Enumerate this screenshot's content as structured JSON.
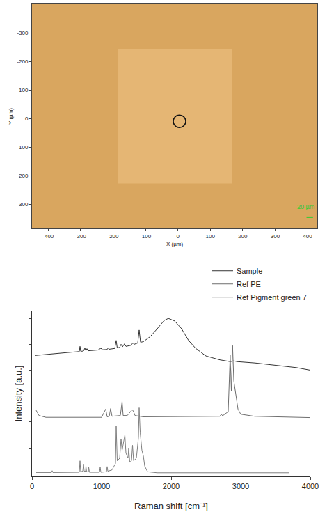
{
  "chart_data": [
    {
      "type": "scatter",
      "x_label": "X (µm)",
      "y_label": "Y (µm)",
      "x": [
        5
      ],
      "values": [
        10
      ],
      "marker": "circle-open",
      "color": "#111111",
      "xlim": [
        -450,
        430
      ],
      "ylim": [
        385,
        -400
      ],
      "xticks": [
        -400,
        -300,
        -200,
        -100,
        0,
        100,
        200,
        300,
        400
      ],
      "yticks": [
        -300,
        -200,
        -100,
        0,
        100,
        200,
        300
      ],
      "scale_bar_length": 20,
      "annotations": [
        {
          "text": "20 µm",
          "color": "#33cc33"
        }
      ],
      "grid": false
    },
    {
      "type": "line",
      "x_label": "Raman shift [cm⁻¹]",
      "y_label": "Intensity [a.u.]",
      "series": [
        {
          "name": "Sample",
          "color": "#333333",
          "x": [
            50,
            300,
            500,
            680,
            690,
            700,
            740,
            760,
            775,
            790,
            805,
            950,
            990,
            1010,
            1080,
            1095,
            1110,
            1190,
            1210,
            1225,
            1260,
            1280,
            1300,
            1330,
            1350,
            1420,
            1450,
            1470,
            1520,
            1540,
            1560,
            1600,
            1700,
            1800,
            1900,
            1960,
            2050,
            2150,
            2250,
            2350,
            2500,
            2700,
            2850,
            2900,
            2950,
            3200,
            3500,
            3800,
            4000
          ],
          "values": [
            4.57,
            4.62,
            4.68,
            4.72,
            4.92,
            4.73,
            4.74,
            4.85,
            4.75,
            4.83,
            4.75,
            4.78,
            4.85,
            4.79,
            4.8,
            4.86,
            4.81,
            4.84,
            5.15,
            4.86,
            4.88,
            5.0,
            4.9,
            5.02,
            4.92,
            4.96,
            5.05,
            5.0,
            5.05,
            5.55,
            5.08,
            5.1,
            5.3,
            5.6,
            5.92,
            6.0,
            5.9,
            5.6,
            5.15,
            4.85,
            4.55,
            4.4,
            4.33,
            4.36,
            4.33,
            4.28,
            4.2,
            4.1,
            4.0
          ]
        },
        {
          "name": "Ref PE",
          "color": "#6e6e6e",
          "x": [
            60,
            100,
            200,
            1000,
            1060,
            1080,
            1110,
            1130,
            1150,
            1270,
            1295,
            1310,
            1370,
            1420,
            1440,
            1460,
            1480,
            1600,
            2700,
            2720,
            2740,
            2820,
            2848,
            2865,
            2883,
            2900,
            2935,
            2960,
            3000,
            3200,
            4000
          ],
          "values": [
            2.45,
            2.25,
            2.18,
            2.18,
            2.5,
            2.2,
            2.22,
            2.52,
            2.22,
            2.25,
            2.8,
            2.25,
            2.25,
            2.4,
            2.48,
            2.4,
            2.25,
            2.2,
            2.22,
            2.3,
            2.24,
            2.4,
            4.6,
            3.2,
            4.95,
            3.6,
            3.0,
            2.5,
            2.3,
            2.22,
            2.17
          ]
        },
        {
          "name": "Ref Pigment green 7",
          "color": "#808080",
          "x": [
            60,
            280,
            290,
            300,
            680,
            690,
            700,
            730,
            740,
            750,
            770,
            775,
            785,
            810,
            815,
            825,
            970,
            980,
            990,
            1070,
            1080,
            1090,
            1150,
            1200,
            1210,
            1225,
            1260,
            1280,
            1295,
            1310,
            1335,
            1350,
            1380,
            1390,
            1405,
            1430,
            1445,
            1460,
            1500,
            1530,
            1540,
            1555,
            1580,
            1600,
            1620,
            1660,
            1800,
            3700
          ],
          "values": [
            0.05,
            0.05,
            0.12,
            0.05,
            0.06,
            0.5,
            0.08,
            0.1,
            0.38,
            0.1,
            0.1,
            0.3,
            0.08,
            0.08,
            0.25,
            0.06,
            0.06,
            0.25,
            0.06,
            0.08,
            0.28,
            0.1,
            0.15,
            0.4,
            1.85,
            0.5,
            0.6,
            1.35,
            0.9,
            1.1,
            1.5,
            0.8,
            0.6,
            1.0,
            0.45,
            0.5,
            1.1,
            0.5,
            0.6,
            1.4,
            2.55,
            1.6,
            0.9,
            0.7,
            0.3,
            0.08,
            0.04,
            0.04
          ]
        }
      ],
      "xlim": [
        0,
        4000
      ],
      "xticks": [
        0,
        1000,
        2000,
        3000,
        4000
      ],
      "ylim": [
        -0.1,
        6.3
      ],
      "yticks": [
        0,
        1,
        2,
        3,
        4,
        5,
        6
      ],
      "tick_labels": "x",
      "legend": "top right",
      "grid": false
    }
  ]
}
